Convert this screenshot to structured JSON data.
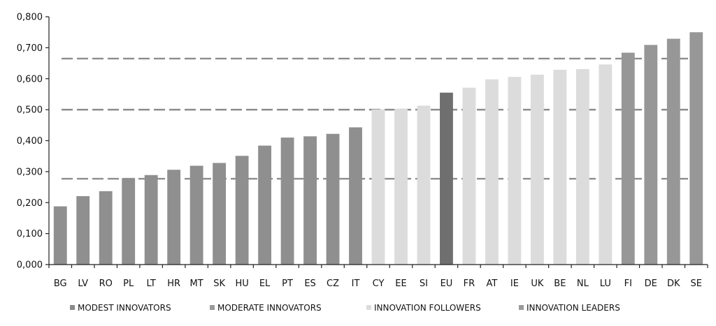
{
  "chart_data": {
    "type": "bar",
    "categories": [
      "BG",
      "LV",
      "RO",
      "PL",
      "LT",
      "HR",
      "MT",
      "SK",
      "HU",
      "EL",
      "PT",
      "ES",
      "CZ",
      "IT",
      "CY",
      "EE",
      "SI",
      "EU",
      "FR",
      "AT",
      "IE",
      "UK",
      "BE",
      "NL",
      "LU",
      "FI",
      "DE",
      "DK",
      "SE"
    ],
    "values": [
      0.188,
      0.221,
      0.237,
      0.279,
      0.289,
      0.306,
      0.319,
      0.328,
      0.351,
      0.384,
      0.41,
      0.414,
      0.422,
      0.443,
      0.501,
      0.503,
      0.513,
      0.555,
      0.571,
      0.598,
      0.606,
      0.613,
      0.629,
      0.631,
      0.646,
      0.684,
      0.709,
      0.729,
      0.75
    ],
    "groups": [
      "modest",
      "modest",
      "modest",
      "modest",
      "modest",
      "modest",
      "modest",
      "modest",
      "modest",
      "modest",
      "modest",
      "modest",
      "modest",
      "modest",
      "follower",
      "follower",
      "follower",
      "eu",
      "follower",
      "follower",
      "follower",
      "follower",
      "follower",
      "follower",
      "follower",
      "leader",
      "leader",
      "leader",
      "leader"
    ],
    "y_ticks": [
      "0,000",
      "0,100",
      "0,200",
      "0,300",
      "0,400",
      "0,500",
      "0,600",
      "0,700",
      "0,800"
    ],
    "ylim": [
      0,
      0.8
    ],
    "thresholds": [
      0.277,
      0.5,
      0.665
    ],
    "title": "",
    "xlabel": "",
    "ylabel": "",
    "grid": false,
    "legend_position": "bottom",
    "legend": [
      {
        "label": "MODEST INNOVATORS",
        "color": "#8a8a8a"
      },
      {
        "label": "MODERATE INNOVATORS",
        "color": "#9a9a9a"
      },
      {
        "label": "INNOVATION FOLLOWERS",
        "color": "#dcdcdc"
      },
      {
        "label": "INNOVATION LEADERS",
        "color": "#9a9a9a"
      }
    ],
    "colors": {
      "modest": "#8f8f8f",
      "follower": "#dcdcdc",
      "eu": "#6f6f6f",
      "leader": "#979797",
      "threshold": "#8c8c8c",
      "axis": "#222222"
    }
  }
}
